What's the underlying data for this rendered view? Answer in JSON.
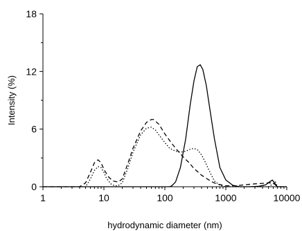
{
  "chart_data": {
    "type": "line",
    "title": "",
    "xlabel": "hydrodynamic diameter (nm)",
    "ylabel": "Intensity (%)",
    "x_scale": "log",
    "xlim": [
      1,
      10000
    ],
    "ylim": [
      0,
      18
    ],
    "x_ticks": [
      1,
      10,
      100,
      1000,
      10000
    ],
    "x_tick_labels": [
      "1",
      "10",
      "100",
      "1000",
      "10000"
    ],
    "y_ticks": [
      0,
      6,
      12,
      18
    ],
    "y_tick_labels": [
      "0",
      "6",
      "12",
      "18"
    ],
    "grid": false,
    "legend": "none",
    "series": [
      {
        "style": "solid",
        "x": [
          1,
          120,
          130,
          150,
          180,
          220,
          260,
          300,
          340,
          380,
          420,
          480,
          550,
          650,
          800,
          1000,
          1300,
          1700,
          2200,
          2800,
          3500,
          4500,
          5200,
          5800,
          6300,
          7000,
          10000
        ],
        "y": [
          0,
          0,
          0.1,
          0.5,
          2.0,
          5.0,
          8.5,
          11.0,
          12.5,
          12.7,
          12.2,
          10.5,
          8.0,
          5.0,
          2.0,
          0.7,
          0.15,
          0,
          0,
          0.02,
          0.05,
          0.2,
          0.5,
          0.7,
          0.4,
          0,
          0
        ]
      },
      {
        "style": "dashed",
        "x": [
          1,
          4,
          5,
          6,
          7,
          8,
          9,
          10,
          12,
          14,
          17,
          20,
          25,
          30,
          40,
          50,
          60,
          65,
          80,
          100,
          130,
          160,
          200,
          250,
          300,
          400,
          500,
          600,
          700,
          1000,
          1500,
          2000,
          3000,
          4000,
          5000,
          6000,
          7000,
          10000
        ],
        "y": [
          0,
          0,
          0.4,
          1.5,
          2.5,
          2.8,
          2.5,
          1.8,
          1.0,
          0.6,
          0.5,
          0.8,
          2.5,
          4.0,
          5.8,
          6.7,
          7.0,
          7.0,
          6.5,
          5.5,
          4.5,
          3.8,
          3.1,
          2.5,
          1.9,
          1.2,
          0.8,
          0.5,
          0.3,
          0.1,
          0.1,
          0.2,
          0.3,
          0.35,
          0.4,
          0.4,
          0,
          0
        ]
      },
      {
        "style": "dotted",
        "x": [
          1,
          5,
          6,
          7,
          8,
          9,
          10,
          11,
          13,
          15,
          17,
          20,
          25,
          30,
          40,
          50,
          60,
          70,
          80,
          100,
          120,
          150,
          180,
          220,
          260,
          300,
          350,
          400,
          450,
          550,
          650,
          800,
          1000,
          1500,
          2000,
          3000,
          4000,
          5000,
          6000,
          6500,
          7000,
          10000
        ],
        "y": [
          0,
          0,
          0.8,
          1.7,
          2.1,
          2.0,
          1.5,
          0.9,
          0.3,
          0.1,
          0.1,
          0.4,
          2.0,
          3.6,
          5.4,
          6.1,
          6.2,
          5.9,
          5.4,
          4.6,
          4.0,
          3.7,
          3.6,
          3.7,
          3.9,
          4.0,
          3.8,
          3.3,
          2.7,
          1.5,
          0.6,
          0.15,
          0,
          0,
          0,
          0,
          0,
          0,
          0.3,
          0.5,
          0,
          0
        ]
      }
    ]
  }
}
